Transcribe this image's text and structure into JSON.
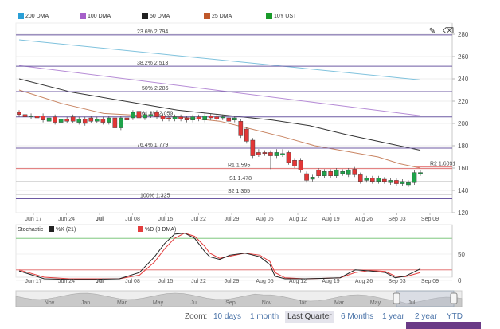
{
  "legend": [
    {
      "label": "200 DMA",
      "color": "#2a9fd6"
    },
    {
      "label": "100 DMA",
      "color": "#a55fc9"
    },
    {
      "label": "50 DMA",
      "color": "#222222"
    },
    {
      "label": "25 DMA",
      "color": "#c0582a"
    },
    {
      "label": "10Y UST",
      "color": "#1a9b2a"
    }
  ],
  "stoch_legend": {
    "title": "Stochastic",
    "k_label": "%K (21)",
    "d_label": "%D (3 DMA)",
    "k_color": "#222222",
    "d_color": "#e33d3d"
  },
  "toolbar": {
    "edit_icon": "pencil-icon",
    "erase_icon": "eraser-icon"
  },
  "zoom": {
    "label": "Zoom:",
    "options": [
      "10 days",
      "1 month",
      "Last Quarter",
      "6 Months",
      "1 year",
      "2 year",
      "YTD"
    ],
    "active": "Last Quarter"
  },
  "colors": {
    "up": "#1fa34a",
    "down": "#e23636",
    "fib": "#7b5fa8",
    "resistance": "#d9534f",
    "support": "#aaaaaa"
  },
  "chart_data": {
    "type": "candlestick",
    "ylim": [
      1.2,
      2.9
    ],
    "yticks": [
      1.2,
      1.4,
      1.6,
      1.8,
      2.0,
      2.2,
      2.4,
      2.6,
      2.8
    ],
    "ytick_labels": [
      "120",
      "140",
      "160",
      "180",
      "200",
      "220",
      "240",
      "260",
      "280"
    ],
    "x_labels": [
      "Jun 17",
      "Jun 24",
      "Jul",
      "Jul 08",
      "Jul 15",
      "Jul 22",
      "Jul 29",
      "Aug 05",
      "Aug 12",
      "Aug 19",
      "Aug 26",
      "Sep 03",
      "Sep 09"
    ],
    "navigator_labels": [
      "Nov",
      "Jan",
      "Mar",
      "May",
      "Jul",
      "Sep",
      "Nov",
      "Jan",
      "Mar",
      "May",
      "Jul"
    ],
    "levels": [
      {
        "label": "23.6% 2.794",
        "value": 2.794,
        "kind": "fib"
      },
      {
        "label": "38.2% 2.513",
        "value": 2.513,
        "kind": "fib"
      },
      {
        "label": "50% 2.286",
        "value": 2.286,
        "kind": "fib"
      },
      {
        "label": "61.8% 2.059",
        "value": 2.059,
        "kind": "fib"
      },
      {
        "label": "76.4% 1.779",
        "value": 1.779,
        "kind": "fib"
      },
      {
        "label": "R1 1.595",
        "value": 1.595,
        "kind": "resistance"
      },
      {
        "label": "R2 1.6091",
        "value": 1.6091,
        "kind": "resistance"
      },
      {
        "label": "S1 1.478",
        "value": 1.478,
        "kind": "support"
      },
      {
        "label": "S2 1.365",
        "value": 1.365,
        "kind": "support"
      },
      {
        "label": "100% 1.325",
        "value": 1.325,
        "kind": "fib"
      }
    ],
    "series": [
      {
        "name": "200 DMA",
        "values": [
          [
            0,
            2.75
          ],
          [
            76,
            2.39
          ]
        ]
      },
      {
        "name": "100 DMA",
        "values": [
          [
            0,
            2.52
          ],
          [
            76,
            2.07
          ]
        ]
      },
      {
        "name": "50 DMA",
        "values": [
          [
            0,
            2.4
          ],
          [
            10,
            2.28
          ],
          [
            20,
            2.2
          ],
          [
            30,
            2.12
          ],
          [
            40,
            2.07
          ],
          [
            48,
            2.03
          ],
          [
            55,
            1.98
          ],
          [
            62,
            1.9
          ],
          [
            70,
            1.82
          ],
          [
            76,
            1.76
          ]
        ]
      },
      {
        "name": "25 DMA",
        "values": [
          [
            0,
            2.3
          ],
          [
            8,
            2.18
          ],
          [
            16,
            2.09
          ],
          [
            24,
            2.07
          ],
          [
            30,
            2.06
          ],
          [
            38,
            2.02
          ],
          [
            44,
            1.95
          ],
          [
            50,
            1.88
          ],
          [
            56,
            1.8
          ],
          [
            62,
            1.75
          ],
          [
            68,
            1.7
          ],
          [
            72,
            1.64
          ],
          [
            76,
            1.6
          ]
        ]
      }
    ],
    "candles": [
      {
        "o": 2.1,
        "c": 2.08,
        "h": 2.12,
        "l": 2.06
      },
      {
        "o": 2.08,
        "c": 2.06,
        "h": 2.1,
        "l": 2.04
      },
      {
        "o": 2.06,
        "c": 2.07,
        "h": 2.09,
        "l": 2.04
      },
      {
        "o": 2.07,
        "c": 2.05,
        "h": 2.09,
        "l": 2.03
      },
      {
        "o": 2.07,
        "c": 2.03,
        "h": 2.09,
        "l": 2.01
      },
      {
        "o": 2.02,
        "c": 2.05,
        "h": 2.07,
        "l": 2.0
      },
      {
        "o": 2.06,
        "c": 2.01,
        "h": 2.08,
        "l": 1.99
      },
      {
        "o": 2.01,
        "c": 2.04,
        "h": 2.06,
        "l": 2.0
      },
      {
        "o": 2.04,
        "c": 2.02,
        "h": 2.06,
        "l": 2.0
      },
      {
        "o": 2.06,
        "c": 2.02,
        "h": 2.08,
        "l": 2.0
      },
      {
        "o": 2.01,
        "c": 2.04,
        "h": 2.06,
        "l": 1.99
      },
      {
        "o": 2.04,
        "c": 2.0,
        "h": 2.06,
        "l": 1.98
      },
      {
        "o": 2.05,
        "c": 2.02,
        "h": 2.07,
        "l": 2.0
      },
      {
        "o": 2.02,
        "c": 2.04,
        "h": 2.06,
        "l": 2.0
      },
      {
        "o": 2.04,
        "c": 2.01,
        "h": 2.06,
        "l": 1.99
      },
      {
        "o": 2.01,
        "c": 2.05,
        "h": 2.07,
        "l": 1.99
      },
      {
        "o": 2.05,
        "c": 1.96,
        "h": 2.07,
        "l": 1.94
      },
      {
        "o": 1.96,
        "c": 2.05,
        "h": 2.07,
        "l": 1.94
      },
      {
        "o": 2.05,
        "c": 2.03,
        "h": 2.07,
        "l": 2.01
      },
      {
        "o": 2.05,
        "c": 2.1,
        "h": 2.12,
        "l": 2.03
      },
      {
        "o": 2.11,
        "c": 2.05,
        "h": 2.13,
        "l": 2.03
      },
      {
        "o": 2.05,
        "c": 2.08,
        "h": 2.1,
        "l": 2.03
      },
      {
        "o": 2.07,
        "c": 2.08,
        "h": 2.1,
        "l": 2.05
      },
      {
        "o": 2.1,
        "c": 2.06,
        "h": 2.12,
        "l": 2.04
      },
      {
        "o": 2.07,
        "c": 2.04,
        "h": 2.09,
        "l": 2.02
      },
      {
        "o": 2.05,
        "c": 2.04,
        "h": 2.07,
        "l": 2.02
      },
      {
        "o": 2.04,
        "c": 2.06,
        "h": 2.08,
        "l": 2.02
      },
      {
        "o": 2.06,
        "c": 2.04,
        "h": 2.08,
        "l": 2.02
      },
      {
        "o": 2.05,
        "c": 2.03,
        "h": 2.07,
        "l": 2.01
      },
      {
        "o": 2.03,
        "c": 2.06,
        "h": 2.08,
        "l": 2.01
      },
      {
        "o": 2.06,
        "c": 2.04,
        "h": 2.08,
        "l": 2.02
      },
      {
        "o": 2.03,
        "c": 2.07,
        "h": 2.09,
        "l": 2.01
      },
      {
        "o": 2.07,
        "c": 2.05,
        "h": 2.09,
        "l": 2.03
      },
      {
        "o": 2.06,
        "c": 2.04,
        "h": 2.08,
        "l": 2.02
      },
      {
        "o": 2.05,
        "c": 2.06,
        "h": 2.08,
        "l": 2.03
      },
      {
        "o": 2.05,
        "c": 2.02,
        "h": 2.07,
        "l": 2.0
      },
      {
        "o": 2.03,
        "c": 2.05,
        "h": 2.07,
        "l": 2.01
      },
      {
        "o": 2.02,
        "c": 1.89,
        "h": 2.04,
        "l": 1.87
      },
      {
        "o": 1.95,
        "c": 1.84,
        "h": 1.97,
        "l": 1.82
      },
      {
        "o": 1.85,
        "c": 1.71,
        "h": 1.87,
        "l": 1.69
      },
      {
        "o": 1.74,
        "c": 1.72,
        "h": 1.77,
        "l": 1.7
      },
      {
        "o": 1.74,
        "c": 1.73,
        "h": 1.76,
        "l": 1.71
      },
      {
        "o": 1.74,
        "c": 1.71,
        "h": 1.76,
        "l": 1.59
      },
      {
        "o": 1.71,
        "c": 1.74,
        "h": 1.77,
        "l": 1.69
      },
      {
        "o": 1.72,
        "c": 1.73,
        "h": 1.77,
        "l": 1.7
      },
      {
        "o": 1.74,
        "c": 1.65,
        "h": 1.76,
        "l": 1.63
      },
      {
        "o": 1.67,
        "c": 1.62,
        "h": 1.69,
        "l": 1.6
      },
      {
        "o": 1.67,
        "c": 1.58,
        "h": 1.69,
        "l": 1.56
      },
      {
        "o": 1.55,
        "c": 1.49,
        "h": 1.57,
        "l": 1.47
      },
      {
        "o": 1.5,
        "c": 1.52,
        "h": 1.54,
        "l": 1.48
      },
      {
        "o": 1.58,
        "c": 1.53,
        "h": 1.6,
        "l": 1.51
      },
      {
        "o": 1.53,
        "c": 1.57,
        "h": 1.59,
        "l": 1.51
      },
      {
        "o": 1.57,
        "c": 1.53,
        "h": 1.59,
        "l": 1.51
      },
      {
        "o": 1.53,
        "c": 1.58,
        "h": 1.6,
        "l": 1.51
      },
      {
        "o": 1.55,
        "c": 1.57,
        "h": 1.59,
        "l": 1.53
      },
      {
        "o": 1.54,
        "c": 1.58,
        "h": 1.6,
        "l": 1.52
      },
      {
        "o": 1.59,
        "c": 1.54,
        "h": 1.61,
        "l": 1.52
      },
      {
        "o": 1.54,
        "c": 1.48,
        "h": 1.56,
        "l": 1.46
      },
      {
        "o": 1.49,
        "c": 1.51,
        "h": 1.53,
        "l": 1.47
      },
      {
        "o": 1.51,
        "c": 1.48,
        "h": 1.53,
        "l": 1.46
      },
      {
        "o": 1.48,
        "c": 1.51,
        "h": 1.53,
        "l": 1.46
      },
      {
        "o": 1.5,
        "c": 1.48,
        "h": 1.52,
        "l": 1.46
      },
      {
        "o": 1.47,
        "c": 1.49,
        "h": 1.51,
        "l": 1.45
      },
      {
        "o": 1.49,
        "c": 1.46,
        "h": 1.51,
        "l": 1.44
      },
      {
        "o": 1.46,
        "c": 1.48,
        "h": 1.5,
        "l": 1.44
      },
      {
        "o": 1.45,
        "c": 1.47,
        "h": 1.49,
        "l": 1.43
      },
      {
        "o": 1.47,
        "c": 1.56,
        "h": 1.58,
        "l": 1.45
      },
      {
        "o": 1.55,
        "c": 1.56,
        "h": 1.58,
        "l": 1.53
      }
    ],
    "stochastic": {
      "ylim": [
        0,
        100
      ],
      "yticks": [
        0,
        50
      ],
      "ytick_labels": [
        "0",
        "50"
      ],
      "overbought": 80,
      "oversold": 20,
      "k": [
        [
          0,
          18
        ],
        [
          5,
          3
        ],
        [
          10,
          2
        ],
        [
          15,
          2
        ],
        [
          20,
          3
        ],
        [
          24,
          15
        ],
        [
          27,
          45
        ],
        [
          29,
          70
        ],
        [
          31,
          88
        ],
        [
          33,
          90
        ],
        [
          35,
          80
        ],
        [
          37,
          55
        ],
        [
          38,
          45
        ],
        [
          40,
          40
        ],
        [
          42,
          48
        ],
        [
          45,
          52
        ],
        [
          48,
          45
        ],
        [
          50,
          30
        ],
        [
          51,
          8
        ],
        [
          53,
          3
        ],
        [
          57,
          3
        ],
        [
          61,
          4
        ],
        [
          64,
          5
        ],
        [
          67,
          20
        ],
        [
          70,
          18
        ],
        [
          73,
          15
        ],
        [
          75,
          5
        ],
        [
          77,
          8
        ],
        [
          80,
          22
        ]
      ],
      "d": [
        [
          0,
          20
        ],
        [
          5,
          6
        ],
        [
          10,
          3
        ],
        [
          15,
          3
        ],
        [
          20,
          3
        ],
        [
          24,
          10
        ],
        [
          27,
          35
        ],
        [
          29,
          60
        ],
        [
          31,
          80
        ],
        [
          33,
          90
        ],
        [
          35,
          84
        ],
        [
          37,
          65
        ],
        [
          38,
          52
        ],
        [
          40,
          42
        ],
        [
          42,
          46
        ],
        [
          45,
          52
        ],
        [
          48,
          48
        ],
        [
          50,
          36
        ],
        [
          51,
          15
        ],
        [
          53,
          5
        ],
        [
          57,
          3
        ],
        [
          61,
          4
        ],
        [
          64,
          5
        ],
        [
          67,
          15
        ],
        [
          70,
          19
        ],
        [
          73,
          17
        ],
        [
          75,
          8
        ],
        [
          77,
          7
        ],
        [
          80,
          15
        ]
      ]
    }
  }
}
